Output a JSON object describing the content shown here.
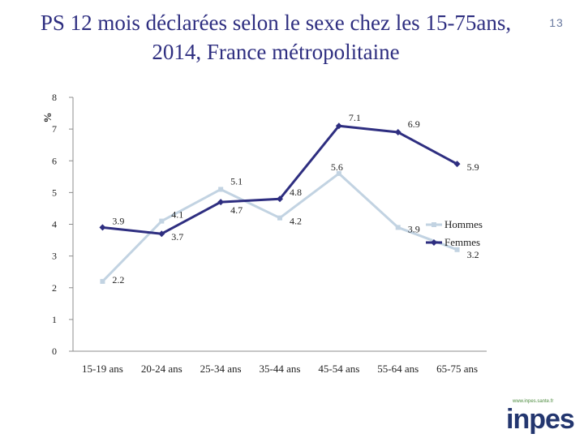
{
  "slide": {
    "title_line1": "PS 12 mois déclarées selon le sexe chez les 15-75ans,",
    "title_line2": "2014, France métropolitaine",
    "page_number": "13"
  },
  "logo": {
    "text": "inpes",
    "url_text": "www.inpes.sante.fr"
  },
  "colors": {
    "title": "#2e2e80",
    "hommes": "#c2d3e2",
    "femmes": "#2e2e80",
    "axis": "#8c8c8c"
  },
  "chart_data": {
    "type": "line",
    "ylabel": "%",
    "xlabel": "",
    "ylim": [
      0,
      8
    ],
    "yticks": [
      "0",
      "1",
      "2",
      "3",
      "4",
      "5",
      "6",
      "7",
      "8"
    ],
    "categories": [
      "15-19 ans",
      "20-24 ans",
      "25-34 ans",
      "35-44 ans",
      "45-54 ans",
      "55-64 ans",
      "65-75 ans"
    ],
    "grid": false,
    "legend_position": "right",
    "series": [
      {
        "name": "Hommes",
        "values": [
          2.2,
          4.1,
          5.1,
          4.2,
          5.6,
          3.9,
          3.2
        ],
        "labels": [
          "2.2",
          "4.1",
          "5.1",
          "4.2",
          "5.6",
          "3.9",
          "3.2"
        ],
        "color": "#c2d3e2"
      },
      {
        "name": "Femmes",
        "values": [
          3.9,
          3.7,
          4.7,
          4.8,
          7.1,
          6.9,
          5.9
        ],
        "labels": [
          "3.9",
          "3.7",
          "4.7",
          "4.8",
          "7.1",
          "6.9",
          "5.9"
        ],
        "color": "#2e2e80"
      }
    ]
  }
}
